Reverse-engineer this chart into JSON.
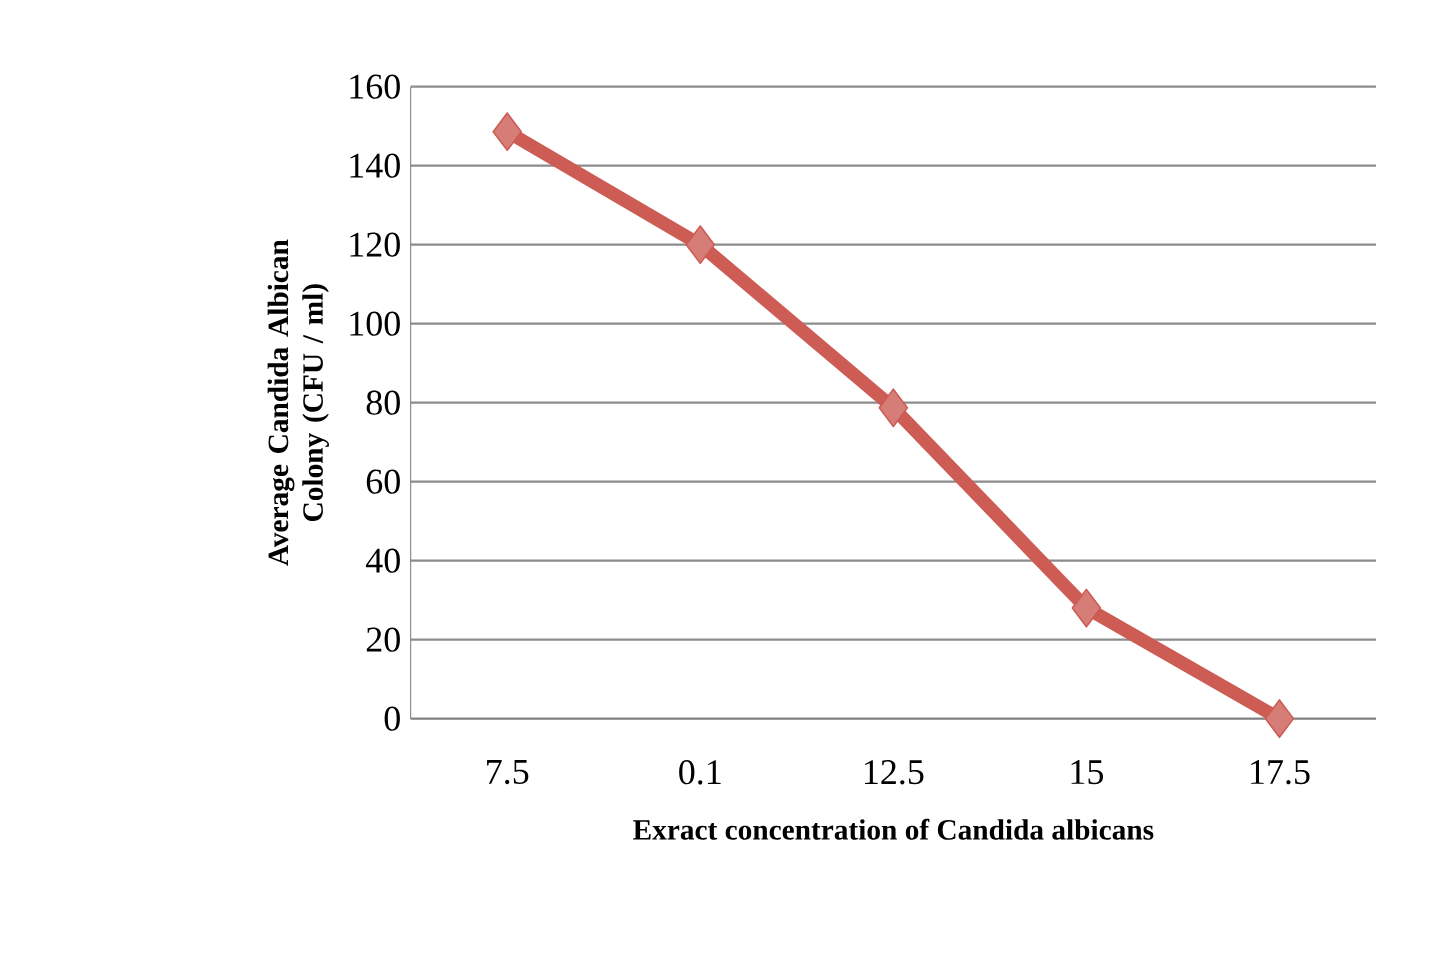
{
  "chart_data": {
    "type": "line",
    "xlabel": "Exract concentration of Candida albicans",
    "ylabel": "Average Candida Albican Colony (CFU / ml)",
    "categories": [
      "7.5",
      "0.1",
      "12.5",
      "15",
      "17.5"
    ],
    "series": [
      {
        "color": "#cd5c55",
        "values": [
          148.6,
          120,
          78.7,
          28,
          0
        ]
      }
    ],
    "ylim": [
      0,
      160
    ],
    "yticks": [
      0,
      20,
      40,
      60,
      80,
      100,
      120,
      140,
      160
    ],
    "grid": "y",
    "marker": "diamond",
    "line_style": "solid"
  }
}
